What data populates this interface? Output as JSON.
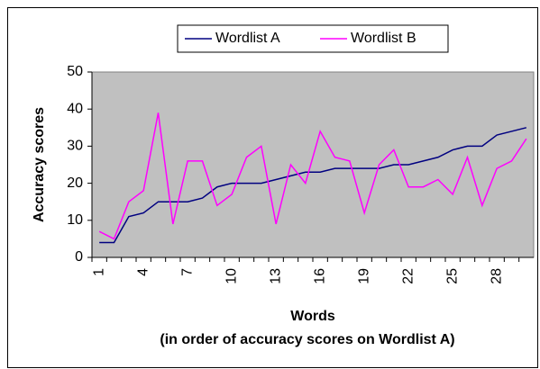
{
  "chart_data": {
    "type": "line",
    "categories": [
      "1",
      null,
      null,
      "4",
      null,
      null,
      "7",
      null,
      null,
      "10",
      null,
      null,
      "13",
      null,
      null,
      "16",
      null,
      null,
      "19",
      null,
      null,
      "22",
      null,
      null,
      "25",
      null,
      null,
      "28",
      null,
      null
    ],
    "series": [
      {
        "name": "Wordlist A",
        "color": "#000080",
        "values": [
          4,
          4,
          11,
          12,
          15,
          15,
          15,
          16,
          19,
          20,
          20,
          20,
          21,
          22,
          23,
          23,
          24,
          24,
          24,
          24,
          25,
          25,
          26,
          27,
          29,
          30,
          30,
          33,
          34,
          35
        ]
      },
      {
        "name": "Wordlist B",
        "color": "#ff00ff",
        "values": [
          7,
          5,
          15,
          18,
          39,
          9,
          26,
          26,
          14,
          17,
          27,
          30,
          9,
          25,
          20,
          34,
          27,
          26,
          12,
          25,
          29,
          19,
          19,
          21,
          17,
          27,
          14,
          24,
          26,
          32
        ]
      }
    ],
    "ylabel": "Accuracy scores",
    "xlabel": [
      "Words",
      "(in order of accuracy scores on Wordlist A)"
    ],
    "ylim": [
      0,
      50
    ],
    "yticks": [
      0,
      10,
      20,
      30,
      40,
      50
    ],
    "plot_background": "#c0c0c0",
    "legend": "top"
  }
}
